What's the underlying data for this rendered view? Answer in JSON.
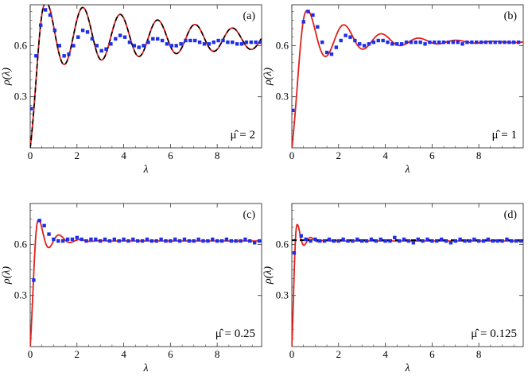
{
  "chart_data": [
    {
      "type": "line",
      "panel": "(a)",
      "annotation": "μ̂ = 2",
      "xlabel": "λ",
      "ylabel": "ρ(λ)",
      "xlim": [
        0,
        9.9
      ],
      "ylim": [
        0,
        0.84
      ],
      "xticks": [
        0,
        2,
        4,
        6,
        8
      ],
      "xtick_labels": [
        "0",
        "2",
        "4",
        "6",
        "8"
      ],
      "yticks": [
        0.3,
        0.6
      ],
      "ytick_labels": [
        "0.3",
        "0.6"
      ],
      "curve": {
        "kind": "damped",
        "A": 0.22,
        "phase": 0.1,
        "period": 1.6,
        "decay": 0.14,
        "plateau": 0.62
      },
      "series": [
        {
          "name": "",
          "style": "red-line",
          "color": "#e0201c"
        },
        {
          "name": "",
          "style": "black-dashed",
          "color": "#000000"
        },
        {
          "name": "",
          "style": "blue-squares",
          "color": "#1f2ee8",
          "x": [
            0.04,
            0.25,
            0.45,
            0.65,
            0.85,
            1.05,
            1.25,
            1.45,
            1.65,
            1.85,
            2.05,
            2.25,
            2.45,
            2.65,
            2.85,
            3.05,
            3.25,
            3.45,
            3.65,
            3.85,
            4.05,
            4.25,
            4.45,
            4.65,
            4.85,
            5.05,
            5.25,
            5.45,
            5.65,
            5.85,
            6.05,
            6.25,
            6.45,
            6.65,
            6.85,
            7.05,
            7.25,
            7.45,
            7.65,
            7.85,
            8.05,
            8.25,
            8.45,
            8.65,
            8.85,
            9.05,
            9.25,
            9.45,
            9.65,
            9.85
          ],
          "y": [
            0.23,
            0.54,
            0.72,
            0.81,
            0.78,
            0.69,
            0.6,
            0.54,
            0.55,
            0.6,
            0.65,
            0.69,
            0.68,
            0.64,
            0.6,
            0.57,
            0.58,
            0.61,
            0.64,
            0.66,
            0.65,
            0.62,
            0.6,
            0.59,
            0.6,
            0.62,
            0.64,
            0.64,
            0.63,
            0.61,
            0.6,
            0.6,
            0.61,
            0.63,
            0.63,
            0.63,
            0.62,
            0.61,
            0.61,
            0.62,
            0.63,
            0.63,
            0.62,
            0.62,
            0.61,
            0.61,
            0.62,
            0.62,
            0.62,
            0.62
          ]
        }
      ]
    },
    {
      "type": "line",
      "panel": "(b)",
      "annotation": "μ̂ = 1",
      "xlabel": "λ",
      "ylabel": "ρ(λ)",
      "xlim": [
        0,
        9.9
      ],
      "ylim": [
        0,
        0.84
      ],
      "xticks": [
        0,
        2,
        4,
        6,
        8
      ],
      "xtick_labels": [
        "0",
        "2",
        "4",
        "6",
        "8"
      ],
      "yticks": [
        0.3,
        0.6
      ],
      "ytick_labels": [
        "0.3",
        "0.6"
      ],
      "curve": {
        "kind": "damped",
        "A": 0.22,
        "phase": 0.1,
        "period": 1.6,
        "decay": 0.45,
        "plateau": 0.62
      },
      "series": [
        {
          "name": "",
          "style": "red-line",
          "color": "#e0201c"
        },
        {
          "name": "",
          "style": "blue-squares",
          "color": "#1f2ee8",
          "x": [
            0.04,
            0.5,
            0.7,
            0.9,
            1.1,
            1.3,
            1.5,
            1.7,
            1.9,
            2.1,
            2.3,
            2.5,
            2.7,
            2.9,
            3.1,
            3.3,
            3.5,
            3.7,
            3.9,
            4.1,
            4.3,
            4.5,
            4.7,
            4.9,
            5.1,
            5.3,
            5.5,
            5.7,
            5.9,
            6.1,
            6.3,
            6.5,
            6.7,
            6.9,
            7.1,
            7.3,
            7.5,
            7.7,
            7.9,
            8.1,
            8.3,
            8.5,
            8.7,
            8.9,
            9.1,
            9.3,
            9.5,
            9.7
          ],
          "y": [
            0.22,
            0.74,
            0.8,
            0.78,
            0.71,
            0.62,
            0.56,
            0.55,
            0.59,
            0.63,
            0.66,
            0.65,
            0.63,
            0.61,
            0.6,
            0.61,
            0.62,
            0.63,
            0.63,
            0.62,
            0.61,
            0.61,
            0.61,
            0.62,
            0.62,
            0.62,
            0.62,
            0.61,
            0.62,
            0.62,
            0.62,
            0.62,
            0.62,
            0.62,
            0.62,
            0.61,
            0.62,
            0.62,
            0.62,
            0.62,
            0.62,
            0.62,
            0.62,
            0.62,
            0.62,
            0.62,
            0.62,
            0.62
          ]
        }
      ]
    },
    {
      "type": "line",
      "panel": "(c)",
      "annotation": "μ̂ = 0.25",
      "xlabel": "λ",
      "ylabel": "ρ(λ)",
      "xlim": [
        0,
        9.9
      ],
      "ylim": [
        0,
        0.84
      ],
      "xticks": [
        0,
        2,
        4,
        6,
        8
      ],
      "xtick_labels": [
        "0",
        "2",
        "4",
        "6",
        "8"
      ],
      "yticks": [
        0.3,
        0.6
      ],
      "ytick_labels": [
        "0.3",
        "0.6"
      ],
      "curve": {
        "kind": "damped",
        "A": 0.2,
        "phase": 0.05,
        "period": 0.9,
        "decay": 1.6,
        "plateau": 0.62
      },
      "series": [
        {
          "name": "",
          "style": "red-line",
          "color": "#e0201c"
        },
        {
          "name": "",
          "style": "blue-squares",
          "color": "#1f2ee8",
          "x": [
            0.15,
            0.4,
            0.6,
            0.8,
            1.0,
            1.2,
            1.4,
            1.6,
            1.8,
            2.0,
            2.2,
            2.4,
            2.6,
            2.8,
            3.0,
            3.2,
            3.4,
            3.6,
            3.8,
            4.0,
            4.2,
            4.4,
            4.6,
            4.8,
            5.0,
            5.2,
            5.4,
            5.6,
            5.8,
            6.0,
            6.2,
            6.4,
            6.6,
            6.8,
            7.0,
            7.2,
            7.4,
            7.6,
            7.8,
            8.0,
            8.2,
            8.4,
            8.6,
            8.8,
            9.0,
            9.2,
            9.4,
            9.6,
            9.8
          ],
          "y": [
            0.39,
            0.74,
            0.71,
            0.66,
            0.63,
            0.62,
            0.62,
            0.63,
            0.63,
            0.64,
            0.63,
            0.62,
            0.63,
            0.63,
            0.62,
            0.63,
            0.62,
            0.63,
            0.62,
            0.63,
            0.62,
            0.63,
            0.62,
            0.62,
            0.63,
            0.62,
            0.62,
            0.63,
            0.62,
            0.62,
            0.63,
            0.62,
            0.63,
            0.62,
            0.62,
            0.63,
            0.62,
            0.62,
            0.63,
            0.62,
            0.62,
            0.63,
            0.62,
            0.62,
            0.62,
            0.63,
            0.62,
            0.61,
            0.62
          ]
        }
      ]
    },
    {
      "type": "line",
      "panel": "(d)",
      "annotation": "μ̂ = 0.125",
      "xlabel": "λ",
      "ylabel": "ρ(λ)",
      "xlim": [
        0,
        9.9
      ],
      "ylim": [
        0,
        0.84
      ],
      "xticks": [
        0,
        2,
        4,
        6,
        8
      ],
      "xtick_labels": [
        "0",
        "2",
        "4",
        "6",
        "8"
      ],
      "yticks": [
        0.3,
        0.6
      ],
      "ytick_labels": [
        "0.3",
        "0.6"
      ],
      "curve": {
        "kind": "damped",
        "A": 0.18,
        "phase": 0.025,
        "period": 0.6,
        "decay": 3.0,
        "plateau": 0.62
      },
      "hline": 0.625,
      "series": [
        {
          "name": "",
          "style": "red-line",
          "color": "#e0201c"
        },
        {
          "name": "",
          "style": "black-dashed",
          "color": "#000000"
        },
        {
          "name": "",
          "style": "blue-squares",
          "color": "#1f2ee8",
          "x": [
            0.1,
            0.4,
            0.6,
            0.8,
            1.0,
            1.2,
            1.4,
            1.6,
            1.8,
            2.0,
            2.2,
            2.4,
            2.6,
            2.8,
            3.0,
            3.2,
            3.4,
            3.6,
            3.8,
            4.0,
            4.2,
            4.4,
            4.6,
            4.8,
            5.0,
            5.2,
            5.4,
            5.6,
            5.8,
            6.0,
            6.2,
            6.4,
            6.6,
            6.8,
            7.0,
            7.2,
            7.4,
            7.6,
            7.8,
            8.0,
            8.2,
            8.4,
            8.6,
            8.8,
            9.0,
            9.2,
            9.4,
            9.6,
            9.8
          ],
          "y": [
            0.55,
            0.65,
            0.63,
            0.62,
            0.63,
            0.62,
            0.62,
            0.63,
            0.62,
            0.62,
            0.63,
            0.62,
            0.62,
            0.63,
            0.62,
            0.62,
            0.63,
            0.62,
            0.63,
            0.62,
            0.62,
            0.64,
            0.62,
            0.63,
            0.62,
            0.61,
            0.63,
            0.62,
            0.63,
            0.62,
            0.62,
            0.63,
            0.62,
            0.61,
            0.62,
            0.63,
            0.62,
            0.62,
            0.63,
            0.62,
            0.62,
            0.63,
            0.62,
            0.62,
            0.62,
            0.63,
            0.62,
            0.62,
            0.62
          ]
        }
      ]
    }
  ]
}
